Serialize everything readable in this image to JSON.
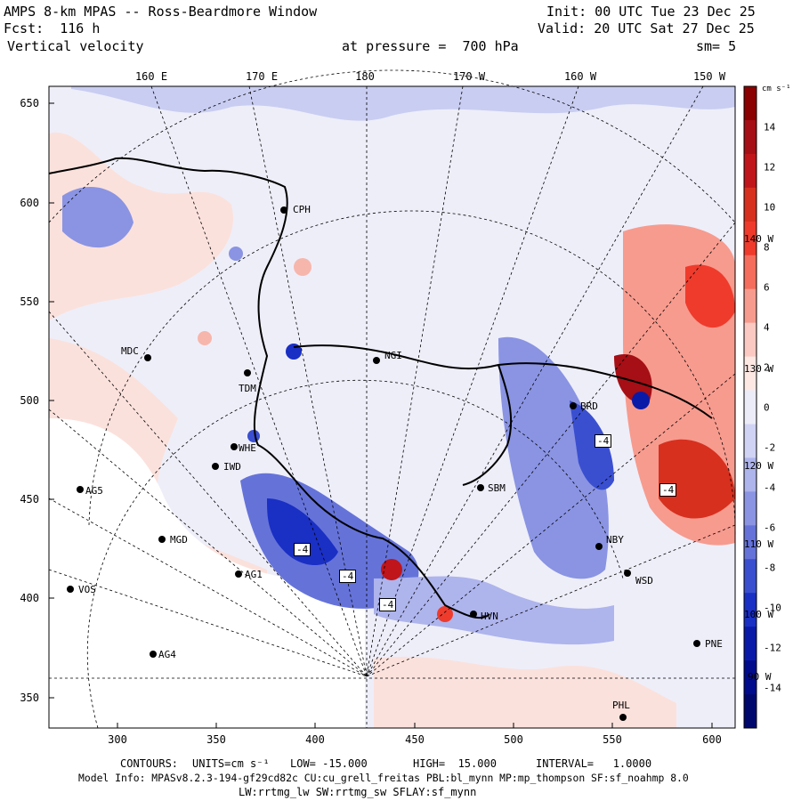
{
  "header": {
    "model_title": "AMPS 8-km MPAS -- Ross-Beardmore Window",
    "forecast": "Fcst:  116 h",
    "variable": "Vertical velocity",
    "init": "Init: 00 UTC Tue 23 Dec 25",
    "valid": "Valid: 20 UTC Sat 27 Dec 25",
    "pressure": "at pressure =  700 hPa",
    "smoothing": "sm= 5"
  },
  "longitude_labels": [
    "160 E",
    "170 E",
    "180",
    "170 W",
    "160 W",
    "150 W"
  ],
  "inner_lon_labels": [
    "140 W",
    "130 W",
    "120 W",
    "110 W",
    "100 W",
    "90 W"
  ],
  "y_axis_ticks": [
    "650",
    "600",
    "550",
    "500",
    "450",
    "400",
    "350"
  ],
  "x_axis_ticks": [
    "300",
    "350",
    "400",
    "450",
    "500",
    "550",
    "600"
  ],
  "colorbar": {
    "units": "cm s⁻¹",
    "labels": [
      "14",
      "12",
      "10",
      "8",
      "6",
      "4",
      "2",
      "0",
      "-2",
      "-4",
      "-6",
      "-8",
      "-10",
      "-12",
      "-14"
    ],
    "colors": [
      "#8b0000",
      "#a50f15",
      "#c0151a",
      "#d7301f",
      "#ef3b2c",
      "#f46d5d",
      "#f79b8e",
      "#fbc9c1",
      "#fde8e4",
      "#ececf8",
      "#d0d3f4",
      "#aeb4ec",
      "#8a94e3",
      "#6573d9",
      "#3a4fd0",
      "#1a2fc4",
      "#0a1aa8",
      "#000c8c",
      "#00086e"
    ]
  },
  "stations": [
    "CPH",
    "MDC",
    "TDM",
    "NGI",
    "WHE",
    "IWD",
    "AG5",
    "MGD",
    "AG1",
    "VOS",
    "AG4",
    "SBM",
    "BRD",
    "NBY",
    "WSD",
    "HVN",
    "PNE",
    "PHL"
  ],
  "contour_boxes": [
    "-4",
    "-4",
    "-4",
    "-4",
    "-4"
  ],
  "footer": {
    "contours_label": "CONTOURS:",
    "units": "UNITS=cm s⁻¹",
    "low": "LOW= -15.000",
    "high": "HIGH=  15.000",
    "interval": "INTERVAL=   1.0000",
    "model_info": "Model Info: MPASv8.2.3-194-gf29cd82c CU:cu_grell_freitas PBL:bl_mynn MP:mp_thompson SF:sf_noahmp 8.0",
    "model_info2": "LW:rrtmg_lw SW:rrtmg_sw SFLAY:sf_mynn"
  }
}
